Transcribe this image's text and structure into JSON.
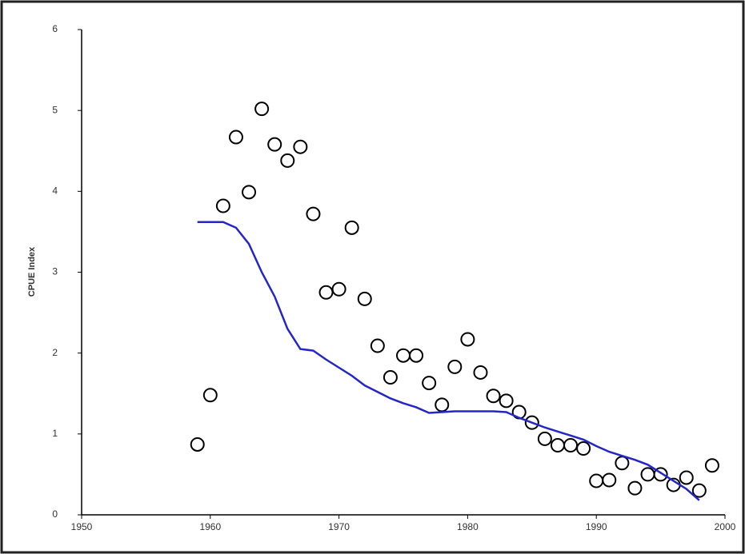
{
  "chart_data": {
    "type": "scatter",
    "y_label": "CPUE Index",
    "xlim": [
      1950,
      2000
    ],
    "xticks": [
      1950,
      1960,
      1970,
      1980,
      1990,
      2000
    ],
    "ylim": [
      0,
      6
    ],
    "yticks": [
      0,
      1,
      2,
      3,
      4,
      5,
      6
    ],
    "grid": false,
    "series": [
      {
        "color": "#000000",
        "style": "marker",
        "x": [
          1959,
          1960,
          1961,
          1962,
          1963,
          1964,
          1965,
          1966,
          1967,
          1968,
          1969,
          1970,
          1971,
          1972,
          1973,
          1974,
          1975,
          1976,
          1977,
          1978,
          1979,
          1980,
          1981,
          1982,
          1983,
          1984,
          1985,
          1986,
          1987,
          1988,
          1989,
          1990,
          1991,
          1992,
          1993,
          1994,
          1995,
          1996,
          1997,
          1998,
          1999
        ],
        "values": [
          0.87,
          1.48,
          3.82,
          4.67,
          3.99,
          5.02,
          4.58,
          4.38,
          4.55,
          3.72,
          2.75,
          2.79,
          3.55,
          2.67,
          2.09,
          1.7,
          1.97,
          1.97,
          1.63,
          1.36,
          1.83,
          2.17,
          1.76,
          1.47,
          1.41,
          1.27,
          1.14,
          0.94,
          0.86,
          0.86,
          0.82,
          0.42,
          0.43,
          0.64,
          0.33,
          0.5,
          0.5,
          0.37,
          0.46,
          0.3,
          0.61
        ]
      },
      {
        "color": "#2626c8",
        "style": "line",
        "x": [
          1959,
          1960,
          1961,
          1962,
          1963,
          1964,
          1965,
          1966,
          1967,
          1968,
          1969,
          1970,
          1971,
          1972,
          1973,
          1974,
          1975,
          1976,
          1977,
          1978,
          1979,
          1980,
          1981,
          1982,
          1983,
          1984,
          1985,
          1986,
          1987,
          1988,
          1989,
          1990,
          1991,
          1992,
          1993,
          1994,
          1995,
          1996,
          1997,
          1998
        ],
        "values": [
          3.62,
          3.62,
          3.62,
          3.55,
          3.35,
          3.0,
          2.7,
          2.3,
          2.05,
          2.03,
          1.92,
          1.82,
          1.72,
          1.6,
          1.52,
          1.44,
          1.38,
          1.33,
          1.26,
          1.27,
          1.28,
          1.28,
          1.28,
          1.28,
          1.27,
          1.2,
          1.14,
          1.08,
          1.03,
          0.98,
          0.93,
          0.85,
          0.78,
          0.73,
          0.68,
          0.62,
          0.52,
          0.42,
          0.32,
          0.18
        ]
      }
    ]
  }
}
